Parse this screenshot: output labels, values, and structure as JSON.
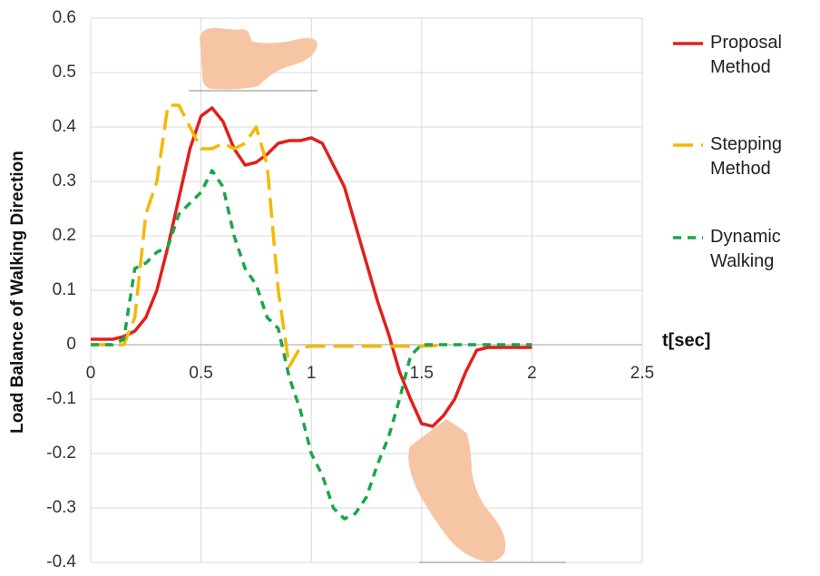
{
  "chart_data": {
    "type": "line",
    "y_label": "Load Balance of Walking Direction",
    "x_label": "t[sec]",
    "x": [
      0,
      0.05,
      0.1,
      0.15,
      0.2,
      0.25,
      0.3,
      0.35,
      0.4,
      0.45,
      0.5,
      0.55,
      0.6,
      0.65,
      0.7,
      0.75,
      0.8,
      0.85,
      0.9,
      0.95,
      1.0,
      1.05,
      1.1,
      1.15,
      1.2,
      1.25,
      1.3,
      1.35,
      1.4,
      1.45,
      1.5,
      1.55,
      1.6,
      1.65,
      1.7,
      1.75,
      1.8,
      1.85,
      1.9,
      1.95,
      2.0
    ],
    "series": [
      {
        "name": "Proposal Method",
        "color": "#e0201b",
        "dash": "solid",
        "values": [
          0.01,
          0.01,
          0.01,
          0.015,
          0.025,
          0.05,
          0.1,
          0.18,
          0.27,
          0.36,
          0.42,
          0.435,
          0.41,
          0.36,
          0.33,
          0.335,
          0.35,
          0.37,
          0.375,
          0.375,
          0.38,
          0.37,
          0.33,
          0.29,
          0.22,
          0.15,
          0.08,
          0.02,
          -0.05,
          -0.1,
          -0.145,
          -0.15,
          -0.13,
          -0.1,
          -0.05,
          -0.01,
          -0.005,
          -0.005,
          -0.005,
          -0.005,
          -0.005
        ]
      },
      {
        "name": "Stepping Method",
        "color": "#f5b800",
        "dash": "long",
        "values": [
          0,
          0,
          0,
          0,
          0.05,
          0.24,
          0.3,
          0.44,
          0.44,
          0.4,
          0.36,
          0.36,
          0.37,
          0.36,
          0.37,
          0.4,
          0.33,
          0.1,
          -0.04,
          -0.005,
          -0.003,
          -0.003,
          -0.003,
          -0.003,
          -0.003,
          -0.003,
          -0.003,
          -0.003,
          -0.003,
          -0.003,
          -0.003,
          -0.002,
          0,
          null,
          null,
          null,
          null,
          null,
          null,
          null,
          null
        ]
      },
      {
        "name": "Dynamic Walking",
        "color": "#1aa64c",
        "dash": "short",
        "values": [
          0,
          0,
          0,
          0.01,
          0.14,
          0.15,
          0.17,
          0.18,
          0.24,
          0.26,
          0.28,
          0.32,
          0.29,
          0.2,
          0.14,
          0.11,
          0.05,
          0.03,
          -0.06,
          -0.12,
          -0.2,
          -0.24,
          -0.3,
          -0.32,
          -0.31,
          -0.28,
          -0.22,
          -0.17,
          -0.1,
          -0.02,
          0,
          0,
          0,
          0,
          0,
          0,
          0,
          0,
          0,
          0,
          0
        ]
      }
    ],
    "xlim": [
      0,
      2.5
    ],
    "ylim": [
      -0.4,
      0.6
    ],
    "xticks": [
      0,
      0.5,
      1,
      1.5,
      2,
      2.5
    ],
    "yticks": [
      0.6,
      0.5,
      0.4,
      0.3,
      0.2,
      0.1,
      0,
      -0.1,
      -0.2,
      -0.3,
      -0.4
    ],
    "grid": true,
    "legend": "right"
  }
}
